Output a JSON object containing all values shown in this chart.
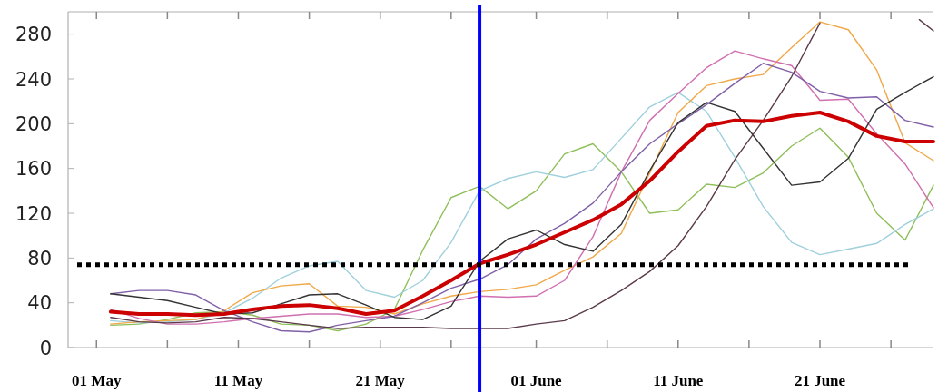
{
  "chart_data": {
    "type": "line",
    "x": [
      "--05-02",
      "--05-04",
      "--05-06",
      "--05-08",
      "--05-10",
      "--05-12",
      "--05-14",
      "--05-16",
      "--05-18",
      "--05-20",
      "--05-22",
      "--05-24",
      "--05-26",
      "--05-28",
      "--05-30",
      "--06-01",
      "--06-03",
      "--06-05",
      "--06-07",
      "--06-09",
      "--06-11",
      "--06-13",
      "--06-15",
      "--06-17",
      "--06-19",
      "--06-21",
      "--06-23",
      "--06-25",
      "--06-27",
      "--06-29"
    ],
    "xlim": [
      "--04-29",
      "--06-29"
    ],
    "xticks": [
      {
        "value": "--05-01",
        "label": "01 May"
      },
      {
        "value": "--05-06",
        "label": null
      },
      {
        "value": "--05-11",
        "label": "11 May"
      },
      {
        "value": "--05-16",
        "label": null
      },
      {
        "value": "--05-21",
        "label": "21 May"
      },
      {
        "value": "--05-26",
        "label": null
      },
      {
        "value": "--06-01",
        "label": "01 June"
      },
      {
        "value": "--06-06",
        "label": null
      },
      {
        "value": "--06-11",
        "label": "11 June"
      },
      {
        "value": "--06-16",
        "label": null
      },
      {
        "value": "--06-21",
        "label": "21 June"
      },
      {
        "value": "--06-26",
        "label": null
      }
    ],
    "ylim": [
      0,
      300
    ],
    "yticks": [
      0,
      40,
      80,
      120,
      160,
      200,
      240,
      280
    ],
    "grid": false,
    "marker": "none",
    "line_style": "solid",
    "series": [
      {
        "color": "#8fbf5a",
        "values": [
          20,
          21,
          25,
          31,
          32,
          29,
          21,
          20,
          15,
          21,
          34,
          87,
          134,
          144,
          124,
          140,
          173,
          182,
          157,
          120,
          123,
          146,
          143,
          156,
          180,
          196,
          170,
          120,
          96,
          145
        ]
      },
      {
        "color": "#9fd0dc",
        "values": [
          24,
          22,
          23,
          25,
          31,
          44,
          62,
          73,
          77,
          51,
          45,
          60,
          94,
          140,
          151,
          157,
          152,
          159,
          187,
          215,
          228,
          211,
          170,
          126,
          94,
          83,
          88,
          93,
          110,
          124
        ]
      },
      {
        "color": "#f0a848",
        "values": [
          21,
          23,
          24,
          25,
          33,
          49,
          55,
          57,
          37,
          36,
          30,
          39,
          46,
          50,
          52,
          56,
          69,
          81,
          102,
          156,
          210,
          234,
          240,
          244,
          268,
          291,
          284,
          248,
          183,
          167
        ]
      },
      {
        "color": "#d070b0",
        "values": [
          34,
          26,
          21,
          21,
          23,
          26,
          28,
          30,
          30,
          27,
          28,
          34,
          41,
          46,
          45,
          46,
          60,
          99,
          157,
          203,
          227,
          250,
          265,
          258,
          252,
          221,
          222,
          191,
          164,
          125
        ]
      },
      {
        "color": "#8060a8",
        "values": [
          48,
          51,
          51,
          47,
          33,
          23,
          15,
          14,
          20,
          24,
          28,
          40,
          53,
          61,
          74,
          97,
          111,
          129,
          157,
          182,
          200,
          217,
          236,
          254,
          246,
          229,
          223,
          224,
          203,
          197
        ]
      },
      {
        "color": "#333333",
        "values": [
          48,
          45,
          42,
          36,
          30,
          31,
          39,
          47,
          48,
          38,
          27,
          25,
          37,
          77,
          97,
          105,
          92,
          86,
          110,
          158,
          201,
          219,
          211,
          178,
          145,
          148,
          169,
          213,
          228,
          242
        ]
      },
      {
        "color": "#5a3a4a",
        "x": [
          "--05-02",
          "--05-04",
          "--05-06",
          "--05-08",
          "--05-10",
          "--05-12",
          "--05-14",
          "--05-16",
          "--05-18",
          "--05-20",
          "--05-22",
          "--05-24",
          "--05-26",
          "--05-28",
          "--05-30",
          "--06-01",
          "--06-03",
          "--06-05",
          "--06-07",
          "--06-09",
          "--06-11",
          "--06-13",
          "--06-15",
          "--06-17",
          "--06-19",
          "--06-21",
          "--06-23",
          "--06-28",
          "--06-29"
        ],
        "values": [
          27,
          23,
          22,
          23,
          27,
          26,
          23,
          20,
          17,
          18,
          18,
          18,
          17,
          17,
          17,
          21,
          24,
          36,
          51,
          68,
          91,
          126,
          168,
          203,
          242,
          290,
          null,
          293,
          283
        ]
      },
      {
        "color": "#cc0000",
        "values": [
          32,
          30,
          30,
          29,
          30,
          34,
          37,
          38,
          35,
          30,
          33,
          46,
          60,
          75,
          83,
          92,
          103,
          114,
          128,
          149,
          175,
          198,
          203,
          202,
          207,
          210,
          202,
          189,
          184,
          184
        ]
      }
    ],
    "ref_lines": [
      {
        "axis": "x",
        "value": "--05-28",
        "color": "#0000ff",
        "line_style": "solid"
      },
      {
        "axis": "y",
        "value": 74,
        "color": "#000000",
        "line_style": "dotted"
      }
    ]
  }
}
